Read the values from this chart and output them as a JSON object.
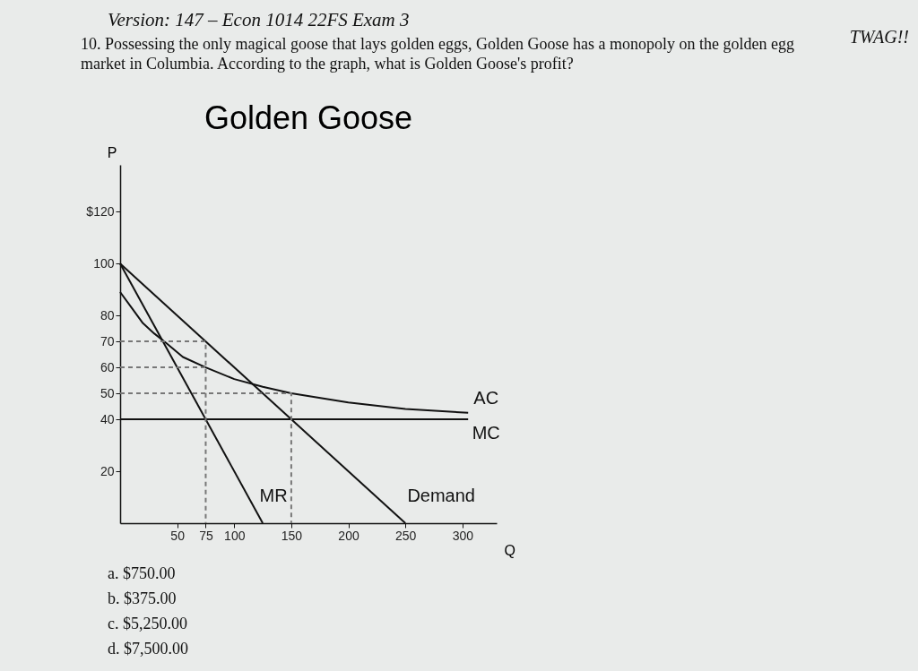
{
  "chart_data": {
    "type": "line",
    "title": "Golden Goose",
    "xlabel": "Q",
    "ylabel": "P",
    "annotations": [
      "Version: 147 – Econ 1014 22FS Exam 3",
      "TWAG!!",
      "10. Possessing the only magical goose that lays golden eggs, Golden Goose has a monopoly on the golden egg market in Columbia. According to the graph, what is Golden Goose's profit?",
      "a. $750.00",
      "b. $375.00",
      "c. $5,250.00",
      "d. $7,500.00"
    ],
    "xlim": [
      0,
      330
    ],
    "ylim": [
      0,
      138
    ],
    "xticks": [
      50,
      75,
      100,
      150,
      200,
      250,
      300
    ],
    "yticks": [
      20,
      40,
      50,
      60,
      70,
      80,
      100,
      {
        "value": 120,
        "label": "$120"
      }
    ],
    "grid": false,
    "series": [
      {
        "name": "Demand",
        "color": "#111111",
        "x": [
          0,
          250
        ],
        "values": [
          100,
          0
        ]
      },
      {
        "name": "MR",
        "color": "#111111",
        "x": [
          0,
          125
        ],
        "values": [
          100,
          0
        ]
      },
      {
        "name": "MC",
        "color": "#111111",
        "x": [
          0,
          305
        ],
        "values": [
          40,
          40
        ]
      },
      {
        "name": "AC",
        "color": "#111111",
        "x": [
          0,
          10,
          20,
          30,
          40,
          55,
          75,
          100,
          125,
          150,
          200,
          250,
          305
        ],
        "values": [
          89,
          83,
          77,
          73,
          69.5,
          64,
          60,
          55.5,
          52.5,
          50,
          46.5,
          44,
          42.5
        ]
      },
      {
        "color": "#777777",
        "line_style": "dashed",
        "x": [
          0,
          75,
          75
        ],
        "values": [
          70,
          70,
          0
        ]
      },
      {
        "color": "#777777",
        "line_style": "dashed",
        "x": [
          0,
          75
        ],
        "values": [
          60,
          60
        ]
      },
      {
        "color": "#777777",
        "line_style": "dashed",
        "x": [
          0,
          150,
          150
        ],
        "values": [
          50,
          50,
          0
        ]
      }
    ]
  }
}
